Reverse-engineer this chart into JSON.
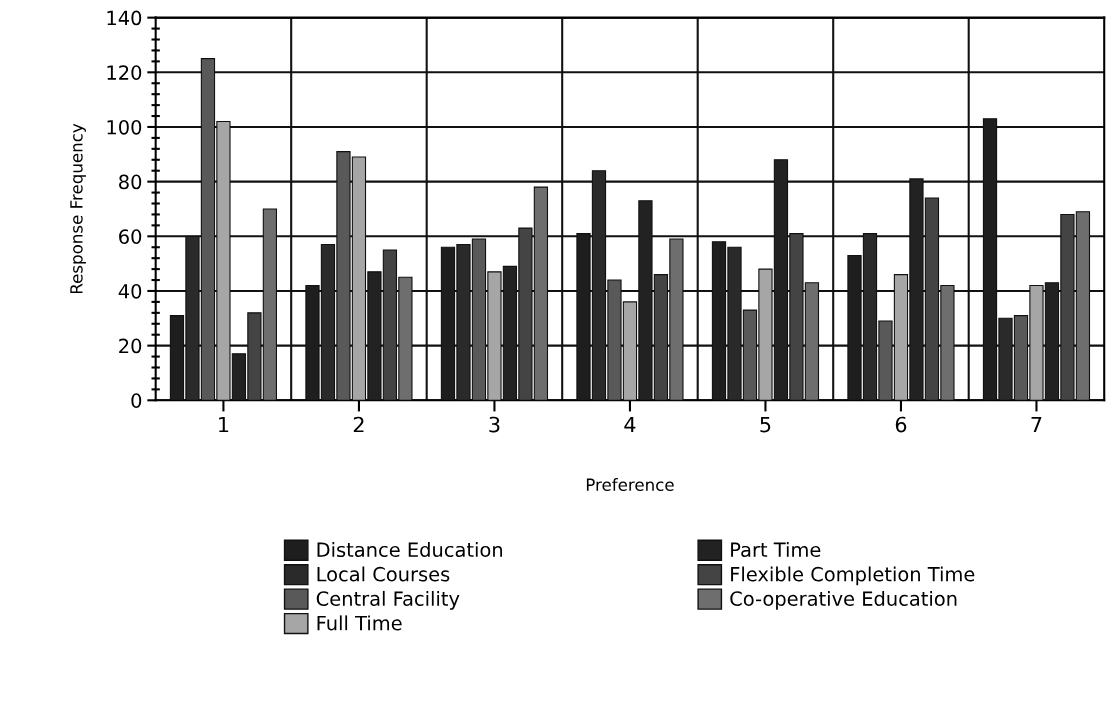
{
  "chart_data": {
    "type": "bar",
    "xlabel": "Preference",
    "ylabel": "Response Frequency",
    "categories": [
      "1",
      "2",
      "3",
      "4",
      "5",
      "6",
      "7"
    ],
    "series": [
      {
        "name": "Distance Education",
        "color": "#1e1e1e",
        "values": [
          31,
          42,
          56,
          61,
          58,
          53,
          103
        ]
      },
      {
        "name": "Local Courses",
        "color": "#2a2a2a",
        "values": [
          60,
          57,
          57,
          84,
          56,
          61,
          30
        ]
      },
      {
        "name": "Central Facility",
        "color": "#595959",
        "values": [
          125,
          91,
          59,
          44,
          33,
          29,
          31
        ]
      },
      {
        "name": "Full Time",
        "color": "#a6a6a6",
        "values": [
          102,
          89,
          47,
          36,
          48,
          46,
          42
        ]
      },
      {
        "name": "Part Time",
        "color": "#222222",
        "values": [
          17,
          47,
          49,
          73,
          88,
          81,
          43
        ]
      },
      {
        "name": "Flexible Completion Time",
        "color": "#444444",
        "values": [
          32,
          55,
          63,
          46,
          61,
          74,
          68
        ]
      },
      {
        "name": "Co-operative Education",
        "color": "#6e6e6e",
        "values": [
          70,
          45,
          78,
          59,
          43,
          42,
          69
        ]
      }
    ],
    "ylim": [
      0,
      140
    ],
    "yticks": [
      0,
      20,
      40,
      60,
      80,
      100,
      120,
      140
    ],
    "grid": true,
    "legend": "bottom"
  }
}
